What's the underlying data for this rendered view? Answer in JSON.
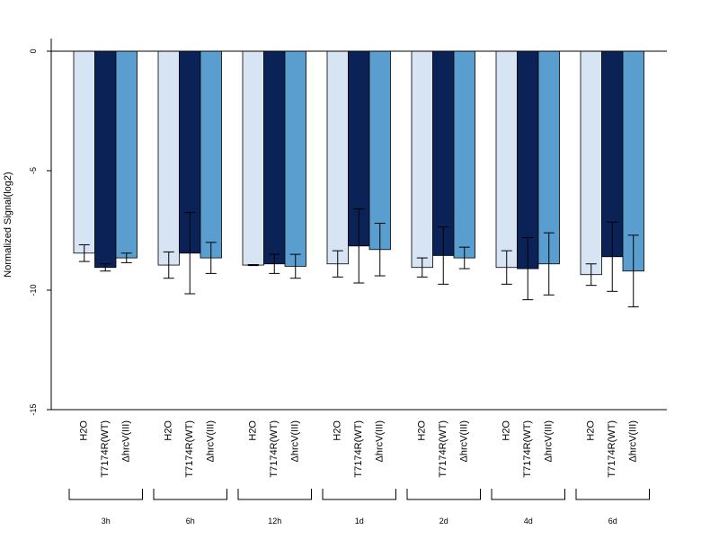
{
  "chart_data": {
    "type": "bar",
    "ylabel": "Normalized Signal(log2)",
    "ylim": [
      -15,
      0
    ],
    "yticks": [
      0,
      -5,
      -10,
      -15
    ],
    "bar_labels": [
      "H2O",
      "T7174R(WT)",
      "ΔhrcV(III)"
    ],
    "groups": [
      "3h",
      "6h",
      "12h",
      "1d",
      "2d",
      "4d",
      "6d"
    ],
    "series": [
      {
        "name": "H2O",
        "color": "#d6e4f4",
        "values": [
          -8.45,
          -8.95,
          -8.95,
          -8.9,
          -9.05,
          -9.05,
          -9.35
        ],
        "error": [
          0.35,
          0.55,
          0.02,
          0.55,
          0.4,
          0.7,
          0.45
        ]
      },
      {
        "name": "T7174R(WT)",
        "color": "#0b2257",
        "values": [
          -9.05,
          -8.45,
          -8.9,
          -8.15,
          -8.55,
          -9.1,
          -8.6
        ],
        "error": [
          0.15,
          1.7,
          0.4,
          1.55,
          1.2,
          1.3,
          1.45
        ]
      },
      {
        "name": "ΔhrcV(III)",
        "color": "#5a9ecf",
        "values": [
          -8.65,
          -8.65,
          -9.0,
          -8.3,
          -8.65,
          -8.9,
          -9.2
        ],
        "error": [
          0.2,
          0.65,
          0.5,
          1.1,
          0.45,
          1.3,
          1.5
        ]
      }
    ]
  }
}
